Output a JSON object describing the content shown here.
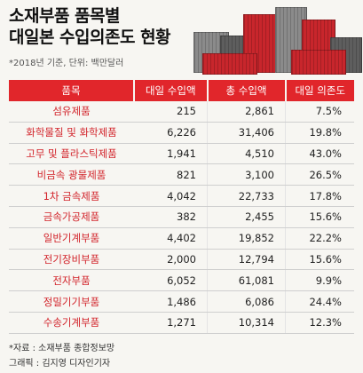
{
  "title_line1": "소재부품 품목별",
  "title_line2": "대일본 수입의존도 현황",
  "subtitle": "*2018년 기준, 단위: 백만달러",
  "colors": {
    "accent": "#e1262b",
    "item_text": "#d2232a"
  },
  "table": {
    "headers": [
      "품목",
      "대일 수입액",
      "총 수입액",
      "대일 의존도"
    ],
    "rows": [
      {
        "item": "섬유제품",
        "japan": "215",
        "total": "2,861",
        "ratio": "7.5%"
      },
      {
        "item": "화학물질 및 화학제품",
        "japan": "6,226",
        "total": "31,406",
        "ratio": "19.8%"
      },
      {
        "item": "고무 및 플라스틱제품",
        "japan": "1,941",
        "total": "4,510",
        "ratio": "43.0%"
      },
      {
        "item": "비금속 광물제품",
        "japan": "821",
        "total": "3,100",
        "ratio": "26.5%"
      },
      {
        "item": "1차 금속제품",
        "japan": "4,042",
        "total": "22,733",
        "ratio": "17.8%"
      },
      {
        "item": "금속가공제품",
        "japan": "382",
        "total": "2,455",
        "ratio": "15.6%"
      },
      {
        "item": "일반기계부품",
        "japan": "4,402",
        "total": "19,852",
        "ratio": "22.2%"
      },
      {
        "item": "전기장비부품",
        "japan": "2,000",
        "total": "12,794",
        "ratio": "15.6%"
      },
      {
        "item": "전자부품",
        "japan": "6,052",
        "total": "61,081",
        "ratio": "9.9%"
      },
      {
        "item": "정밀기기부품",
        "japan": "1,486",
        "total": "6,086",
        "ratio": "24.4%"
      },
      {
        "item": "수송기계부품",
        "japan": "1,271",
        "total": "10,314",
        "ratio": "12.3%"
      }
    ]
  },
  "source": "*자료 : 소재부품 종합정보망",
  "credit": "그래픽 : 김지영 디자인기자"
}
